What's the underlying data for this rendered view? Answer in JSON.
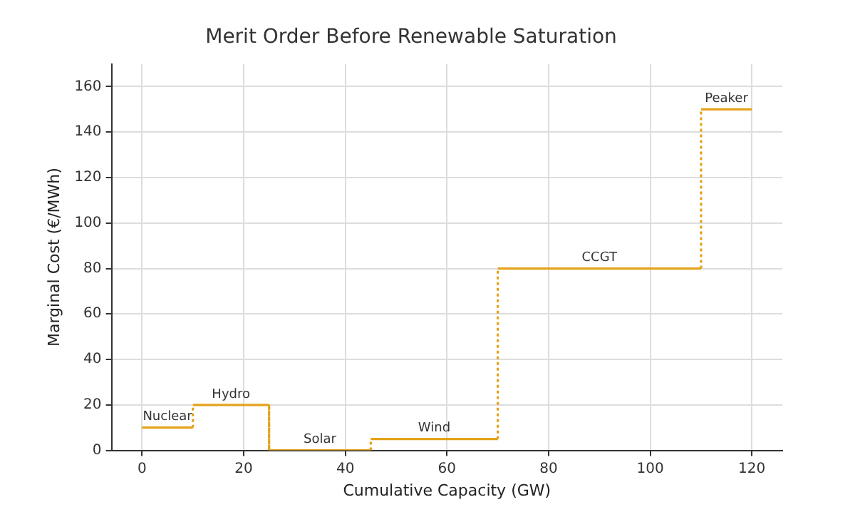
{
  "chart_data": {
    "type": "step",
    "title": "Merit Order Before Renewable Saturation",
    "xlabel": "Cumulative Capacity (GW)",
    "ylabel": "Marginal Cost (€/MWh)",
    "x": [
      0,
      10,
      25,
      45,
      70,
      110,
      120
    ],
    "series": [
      {
        "color": "#e3a21a",
        "values": [
          10,
          20,
          0,
          5,
          80,
          150,
          150
        ]
      }
    ],
    "xlim": [
      -6,
      126
    ],
    "xticks": [
      0,
      20,
      40,
      60,
      80,
      100,
      120
    ],
    "ylim": [
      0,
      170
    ],
    "yticks": [
      0,
      20,
      40,
      60,
      80,
      100,
      120,
      140,
      160
    ],
    "grid": true,
    "legend": false,
    "annotations": [
      {
        "text": "Nuclear",
        "x": 5,
        "y": 10
      },
      {
        "text": "Hydro",
        "x": 17.5,
        "y": 20
      },
      {
        "text": "Solar",
        "x": 35,
        "y": 0
      },
      {
        "text": "Wind",
        "x": 57.5,
        "y": 5
      },
      {
        "text": "CCGT",
        "x": 90,
        "y": 80
      },
      {
        "text": "Peaker",
        "x": 115,
        "y": 150
      }
    ]
  }
}
